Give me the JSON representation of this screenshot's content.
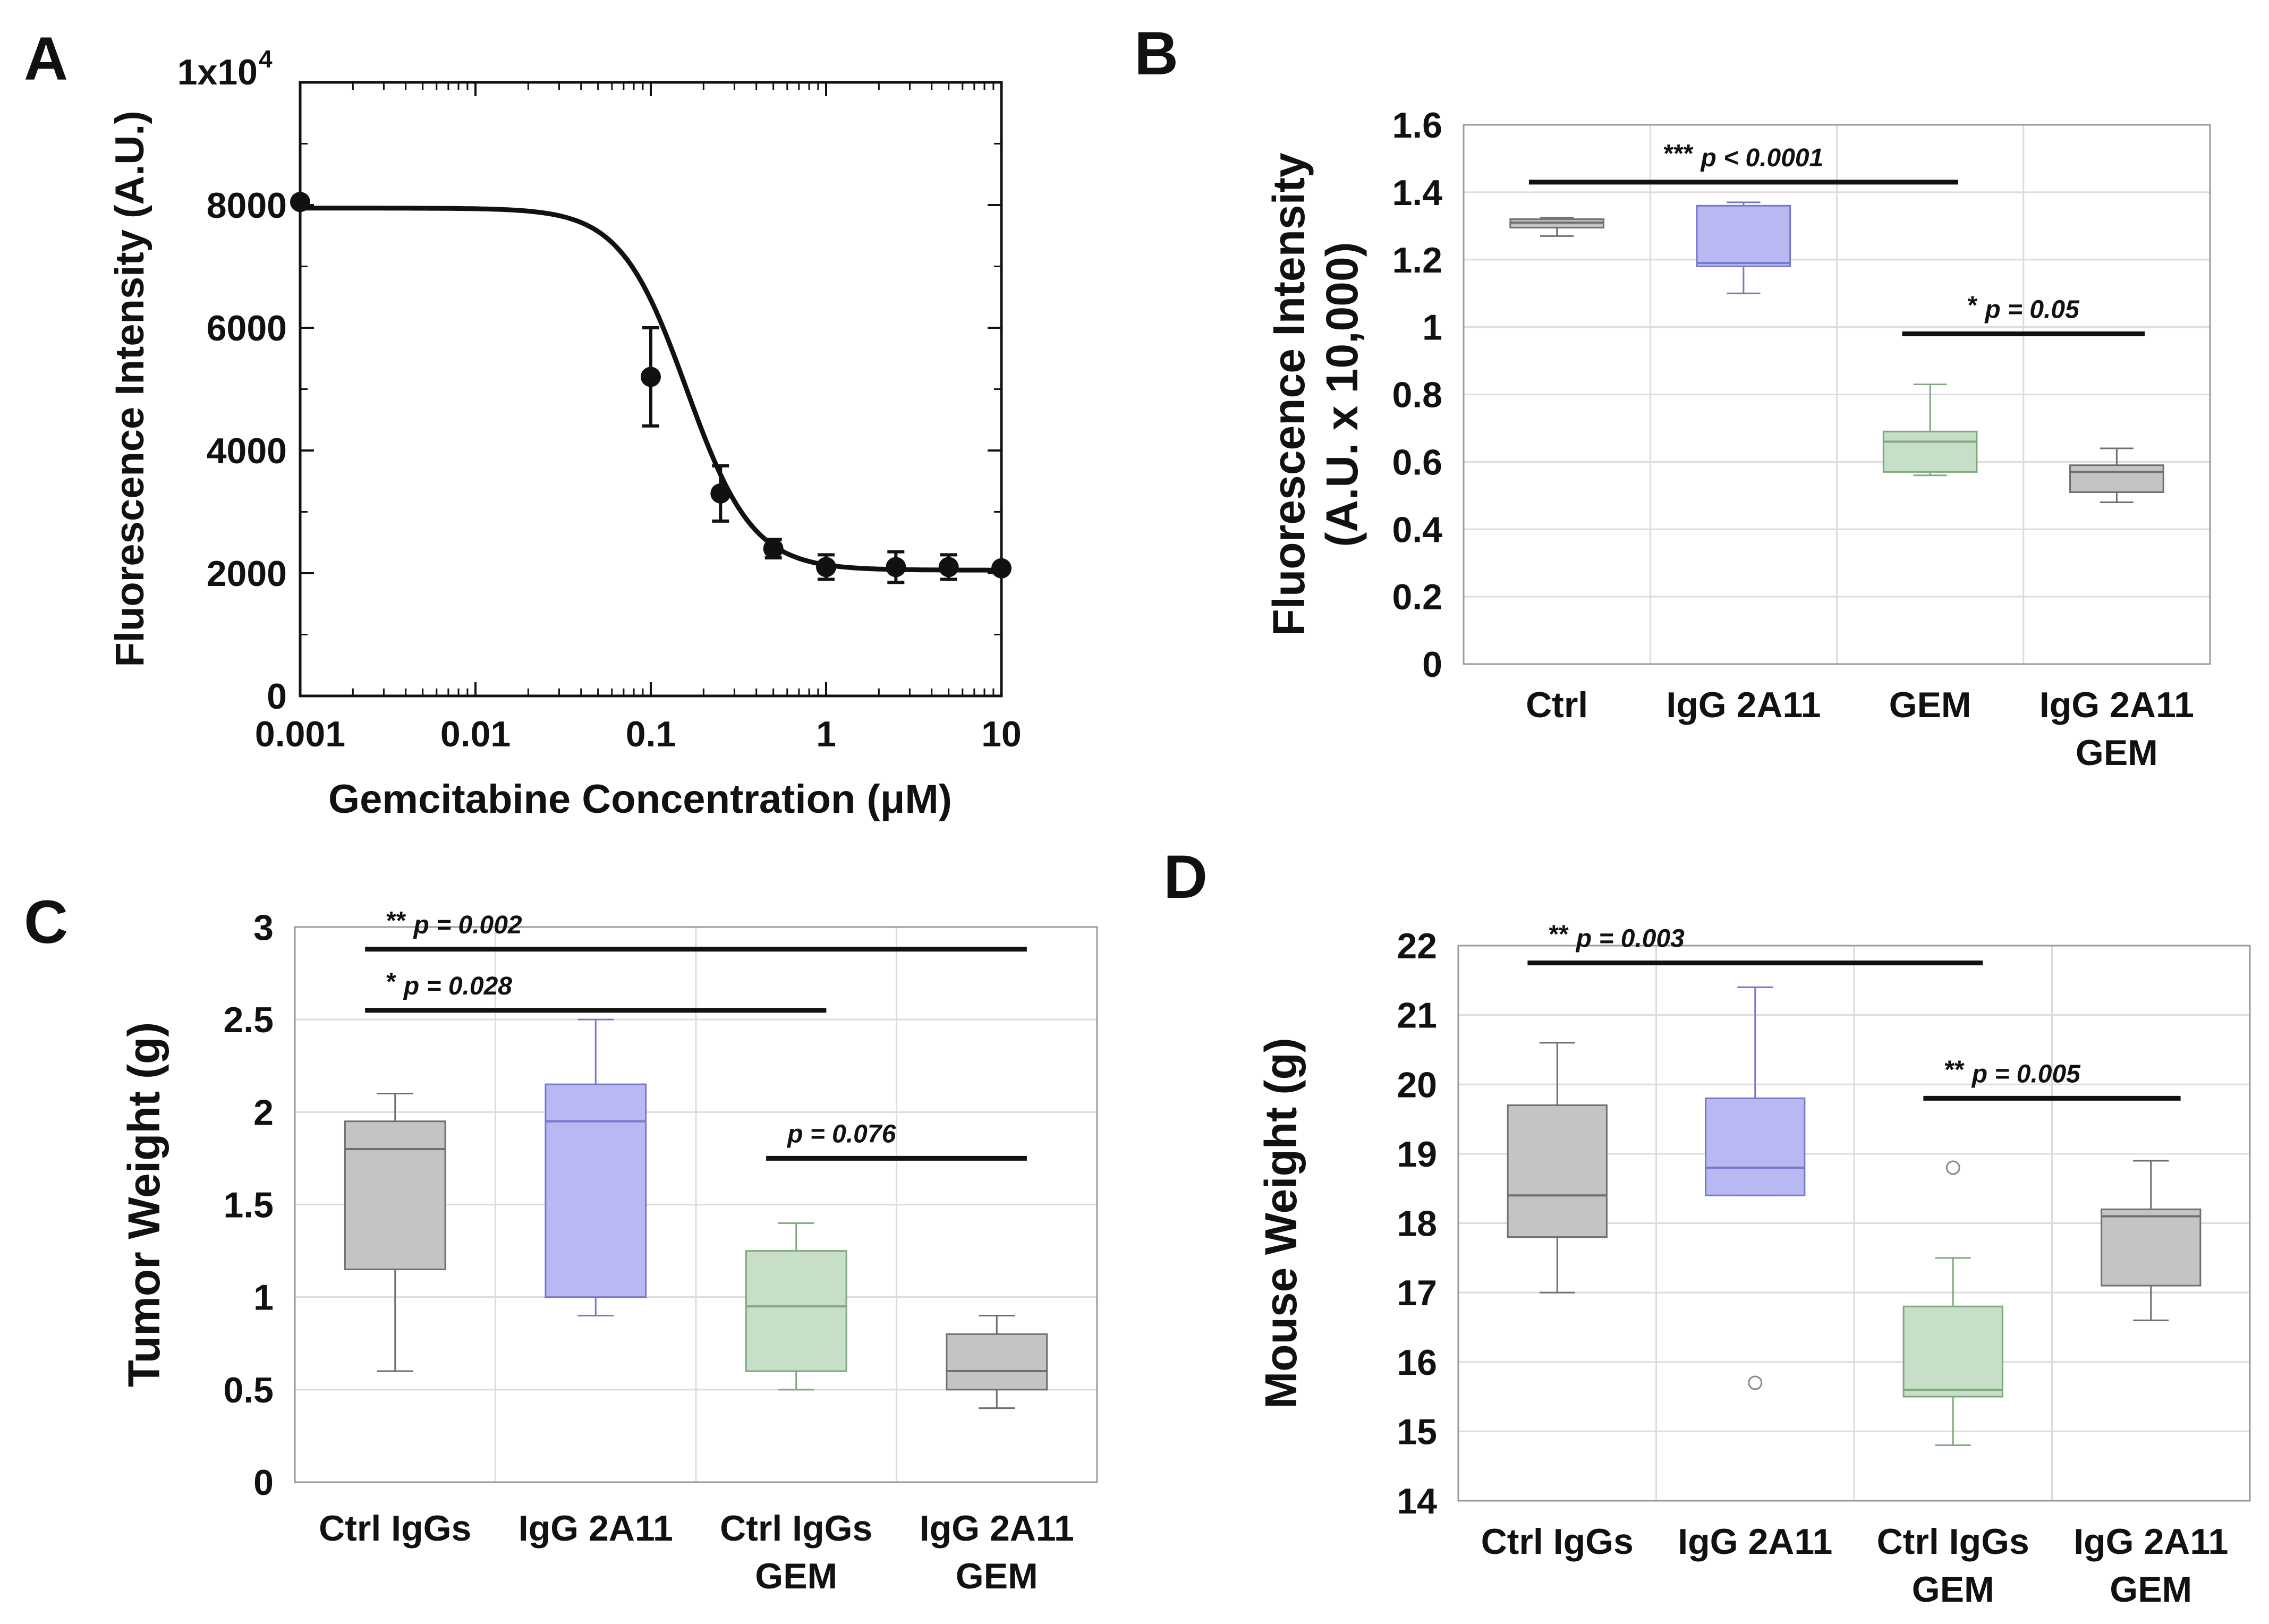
{
  "colors": {
    "gray": "#c4c4c4",
    "gray_edge": "#6f6f6f",
    "blue": "#b8b8f2",
    "blue_edge": "#7777cc",
    "green": "#c7dfc7",
    "green_edge": "#7fa87f",
    "grid": "#dcdcdc",
    "axis": "#111111"
  },
  "chart_data": [
    {
      "panel": "A",
      "type": "scatter",
      "xscale": "log",
      "xlim": [
        0.001,
        10
      ],
      "ylim": [
        0,
        10000
      ],
      "xticks": [
        "0.001",
        "0.01",
        "0.1",
        "1",
        "10"
      ],
      "yticks": [
        "0",
        "2000",
        "4000",
        "6000",
        "8000",
        "1x10"
      ],
      "ytop_exponent": "4",
      "xlabel": "Gemcitabine Concentration (μM)",
      "ylabel": "Fluorescence Intensity (A.U.)",
      "points": [
        {
          "x": 0.001,
          "y": 8050,
          "err": 0
        },
        {
          "x": 0.1,
          "y": 5200,
          "err": 800
        },
        {
          "x": 0.25,
          "y": 3300,
          "err": 450
        },
        {
          "x": 0.5,
          "y": 2400,
          "err": 150
        },
        {
          "x": 1,
          "y": 2100,
          "err": 200
        },
        {
          "x": 2.5,
          "y": 2100,
          "err": 250
        },
        {
          "x": 5,
          "y": 2100,
          "err": 200
        },
        {
          "x": 10,
          "y": 2080,
          "err": 0
        }
      ],
      "fit": {
        "top": 7950,
        "bottom": 2050,
        "ic50": 0.16,
        "hill": 2.3
      }
    },
    {
      "panel": "B",
      "type": "box",
      "ylim": [
        0,
        1.6
      ],
      "yticks": [
        "0",
        "0.2",
        "0.4",
        "0.6",
        "0.8",
        "1",
        "1.2",
        "1.4",
        "1.6"
      ],
      "ylabel_line1": "Fluorescence Intensity",
      "ylabel_line2": "(A.U. x 10,000)",
      "groups": [
        {
          "label1": "Ctrl",
          "label2": "",
          "color": "gray",
          "whislo": 1.27,
          "q1": 1.295,
          "med": 1.31,
          "q3": 1.32,
          "whishi": 1.325,
          "fliers": []
        },
        {
          "label1": "IgG 2A11",
          "label2": "",
          "color": "blue",
          "whislo": 1.1,
          "q1": 1.18,
          "med": 1.19,
          "q3": 1.36,
          "whishi": 1.37,
          "fliers": []
        },
        {
          "label1": "GEM",
          "label2": "",
          "color": "green",
          "whislo": 0.56,
          "q1": 0.57,
          "med": 0.66,
          "q3": 0.69,
          "whishi": 0.83,
          "fliers": []
        },
        {
          "label1": "IgG 2A11",
          "label2": "GEM",
          "color": "gray",
          "whislo": 0.48,
          "q1": 0.51,
          "med": 0.57,
          "q3": 0.59,
          "whishi": 0.64,
          "fliers": []
        }
      ],
      "annotations": [
        {
          "stars": "***",
          "text": "p < 0.0001",
          "from": 0,
          "to": 2,
          "y": 1.43
        },
        {
          "stars": "*",
          "text": "p = 0.05",
          "from": 2,
          "to": 3,
          "y": 0.98
        }
      ]
    },
    {
      "panel": "C",
      "type": "box",
      "ylim": [
        0,
        3
      ],
      "yticks": [
        "0",
        "0.5",
        "1",
        "1.5",
        "2",
        "2.5",
        "3"
      ],
      "ylabel": "Tumor Weight (g)",
      "groups": [
        {
          "label1": "Ctrl IgGs",
          "label2": "",
          "color": "gray",
          "whislo": 0.6,
          "q1": 1.15,
          "med": 1.8,
          "q3": 1.95,
          "whishi": 2.1,
          "fliers": []
        },
        {
          "label1": "IgG 2A11",
          "label2": "",
          "color": "blue",
          "whislo": 0.9,
          "q1": 1.0,
          "med": 1.95,
          "q3": 2.15,
          "whishi": 2.5,
          "fliers": []
        },
        {
          "label1": "Ctrl IgGs",
          "label2": "GEM",
          "color": "green",
          "whislo": 0.5,
          "q1": 0.6,
          "med": 0.95,
          "q3": 1.25,
          "whishi": 1.4,
          "fliers": []
        },
        {
          "label1": "IgG 2A11",
          "label2": "GEM",
          "color": "gray",
          "whislo": 0.4,
          "q1": 0.5,
          "med": 0.6,
          "q3": 0.8,
          "whishi": 0.9,
          "fliers": []
        }
      ],
      "annotations": [
        {
          "stars": "**",
          "text": "p = 0.002",
          "from": 0,
          "to": 3,
          "y": 2.88
        },
        {
          "stars": "*",
          "text": "p = 0.028",
          "from": 0,
          "to": 2,
          "y": 2.55
        },
        {
          "stars": "",
          "text": "p = 0.076",
          "from": 2,
          "to": 3,
          "y": 1.75
        }
      ]
    },
    {
      "panel": "D",
      "type": "box",
      "ylim": [
        14,
        22
      ],
      "yticks": [
        "14",
        "15",
        "16",
        "17",
        "18",
        "19",
        "20",
        "21",
        "22"
      ],
      "ylabel": "Mouse Weight (g)",
      "groups": [
        {
          "label1": "Ctrl IgGs",
          "label2": "",
          "color": "gray",
          "whislo": 17.0,
          "q1": 17.8,
          "med": 18.4,
          "q3": 19.7,
          "whishi": 20.6,
          "fliers": []
        },
        {
          "label1": "IgG 2A11",
          "label2": "",
          "color": "blue",
          "whislo": 18.4,
          "q1": 18.4,
          "med": 18.8,
          "q3": 19.8,
          "whishi": 21.4,
          "fliers": [
            15.7
          ]
        },
        {
          "label1": "Ctrl IgGs",
          "label2": "GEM",
          "color": "green",
          "whislo": 14.8,
          "q1": 15.5,
          "med": 15.6,
          "q3": 16.8,
          "whishi": 17.5,
          "fliers": [
            18.8
          ]
        },
        {
          "label1": "IgG 2A11",
          "label2": "GEM",
          "color": "gray",
          "whislo": 16.6,
          "q1": 17.1,
          "med": 18.1,
          "q3": 18.2,
          "whishi": 18.9,
          "fliers": []
        }
      ],
      "annotations": [
        {
          "stars": "**",
          "text": "p = 0.003",
          "from": 0,
          "to": 2,
          "y": 21.75
        },
        {
          "stars": "**",
          "text": "p = 0.005",
          "from": 2,
          "to": 3,
          "y": 19.8
        }
      ]
    }
  ]
}
